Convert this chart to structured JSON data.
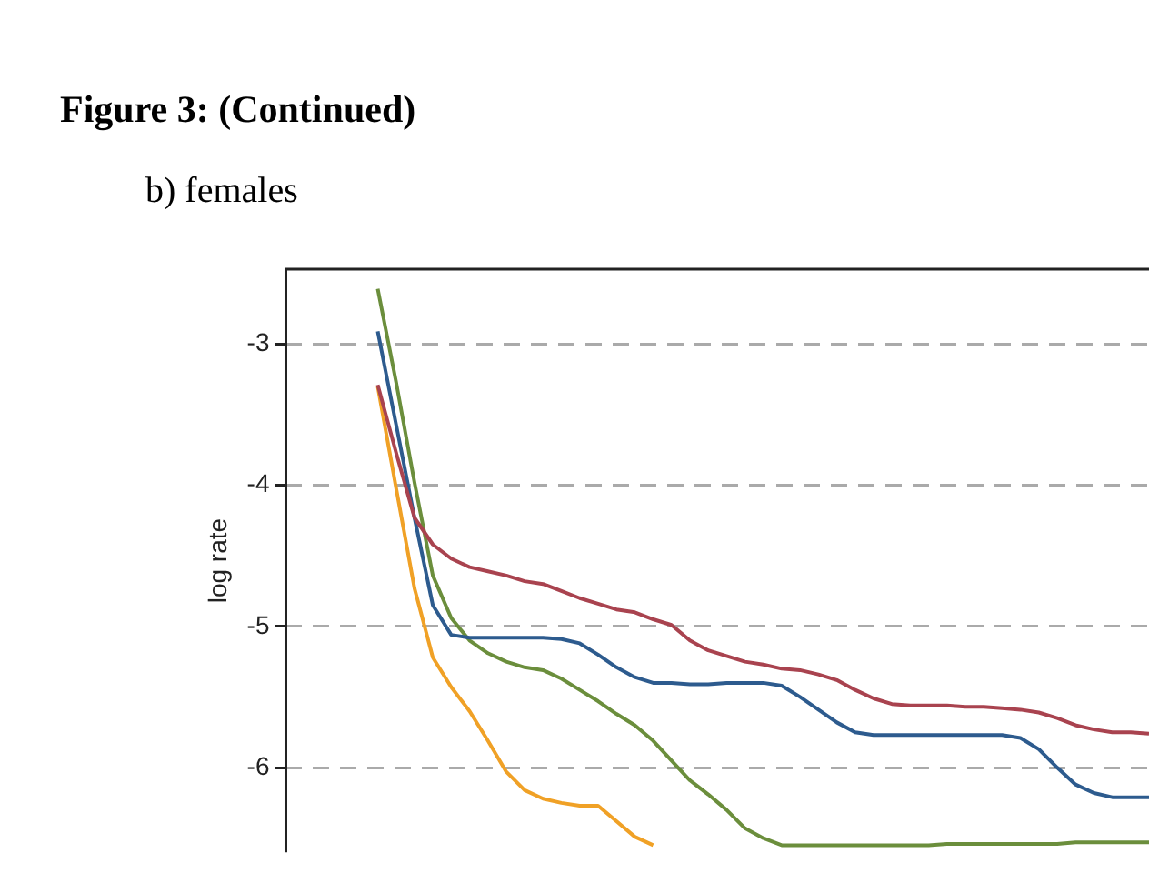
{
  "chart_data": {
    "type": "line",
    "title": "Figure 3: (Continued)",
    "subtitle": "b) females",
    "ylabel": "log rate",
    "categories": [
      null,
      null,
      null,
      null,
      null,
      null,
      null,
      null,
      null,
      null,
      null,
      null,
      null,
      null,
      null,
      null,
      null,
      null,
      null,
      null,
      null,
      null,
      null,
      null,
      null,
      null,
      null,
      null,
      null,
      null,
      null,
      null,
      null,
      null,
      null,
      null,
      null,
      null,
      null,
      null,
      null,
      null,
      null,
      null,
      null,
      null,
      null,
      null
    ],
    "ylim": [
      -6.6,
      -2.47
    ],
    "yticks": [
      -3,
      -4,
      -5,
      -6
    ],
    "grid": "y",
    "tick_labels": "y",
    "legend": false,
    "marker": "none",
    "line_style": "solid",
    "series": [
      {
        "color": "#a9434f",
        "values": [
          null,
          null,
          null,
          null,
          null,
          -3.29,
          -3.77,
          -4.23,
          -4.42,
          -4.52,
          -4.58,
          -4.61,
          -4.64,
          -4.68,
          -4.7,
          -4.75,
          -4.8,
          -4.84,
          -4.88,
          -4.9,
          -4.95,
          -4.99,
          -5.1,
          -5.17,
          -5.21,
          -5.25,
          -5.27,
          -5.3,
          -5.31,
          -5.34,
          -5.38,
          -5.45,
          -5.51,
          -5.55,
          -5.56,
          -5.56,
          -5.56,
          -5.57,
          -5.57,
          -5.58,
          -5.59,
          -5.61,
          -5.65,
          -5.7,
          -5.73,
          -5.75,
          -5.75,
          -5.76
        ]
      },
      {
        "color": "#2d5b8e",
        "values": [
          null,
          null,
          null,
          null,
          null,
          -2.91,
          -3.57,
          -4.23,
          -4.85,
          -5.06,
          -5.08,
          -5.08,
          -5.08,
          -5.08,
          -5.08,
          -5.09,
          -5.12,
          -5.2,
          -5.29,
          -5.36,
          -5.4,
          -5.4,
          -5.41,
          -5.41,
          -5.4,
          -5.4,
          -5.4,
          -5.42,
          -5.5,
          -5.59,
          -5.68,
          -5.75,
          -5.77,
          -5.77,
          -5.77,
          -5.77,
          -5.77,
          -5.77,
          -5.77,
          -5.77,
          -5.79,
          -5.87,
          -6.0,
          -6.12,
          -6.18,
          -6.21,
          -6.21,
          -6.21
        ]
      },
      {
        "color": "#6b8e3c",
        "values": [
          null,
          null,
          null,
          null,
          null,
          -2.61,
          -3.27,
          -3.98,
          -4.64,
          -4.94,
          -5.1,
          -5.19,
          -5.25,
          -5.29,
          -5.31,
          -5.37,
          -5.45,
          -5.53,
          -5.62,
          -5.7,
          -5.81,
          -5.95,
          -6.09,
          -6.19,
          -6.3,
          -6.43,
          -6.5,
          -6.55,
          -6.55,
          -6.55,
          -6.55,
          -6.55,
          -6.55,
          -6.55,
          -6.55,
          -6.55,
          -6.54,
          -6.54,
          -6.54,
          -6.54,
          -6.54,
          -6.54,
          -6.54,
          -6.53,
          -6.53,
          -6.53,
          -6.53,
          -6.53
        ]
      },
      {
        "color": "#f0a126",
        "values": [
          null,
          null,
          null,
          null,
          null,
          -3.3,
          -4.02,
          -4.73,
          -5.22,
          -5.43,
          -5.6,
          -5.81,
          -6.03,
          -6.16,
          -6.22,
          -6.25,
          -6.27,
          -6.27,
          -6.38,
          -6.49,
          -6.55,
          null,
          null,
          null,
          null,
          null,
          null,
          null,
          null,
          null,
          null,
          null,
          null,
          null,
          null,
          null,
          null,
          null,
          null,
          null,
          null,
          null,
          null,
          null,
          null,
          null,
          null,
          null
        ]
      }
    ]
  }
}
